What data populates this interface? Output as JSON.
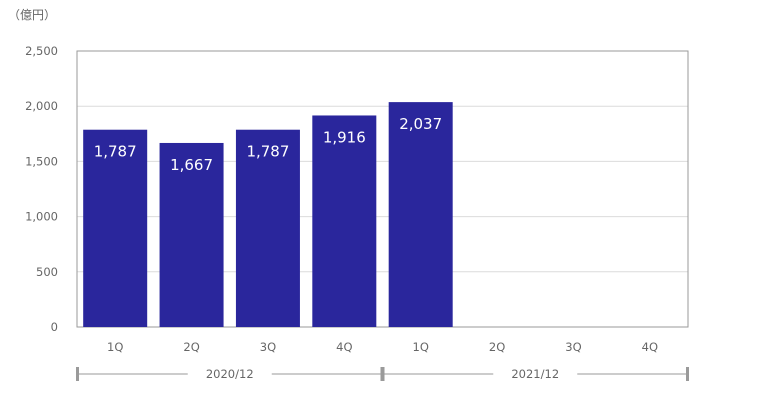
{
  "chart_data": {
    "type": "bar",
    "unit_label": "（億円）",
    "categories": [
      "1Q",
      "2Q",
      "3Q",
      "4Q",
      "1Q",
      "2Q",
      "3Q",
      "4Q"
    ],
    "groups": [
      {
        "label": "2020/12",
        "categories": [
          "1Q",
          "2Q",
          "3Q",
          "4Q"
        ]
      },
      {
        "label": "2021/12",
        "categories": [
          "1Q",
          "2Q",
          "3Q",
          "4Q"
        ]
      }
    ],
    "values": [
      1787,
      1667,
      1787,
      1916,
      2037,
      null,
      null,
      null
    ],
    "data_labels": [
      "1,787",
      "1,667",
      "1,787",
      "1,916",
      "2,037",
      "",
      "",
      ""
    ],
    "ylim": [
      0,
      2500
    ],
    "yticks": [
      0,
      500,
      1000,
      1500,
      2000,
      2500
    ],
    "ytick_labels": [
      "0",
      "500",
      "1,000",
      "1,500",
      "2,000",
      "2,500"
    ],
    "grid": true,
    "bar_color": "#2a269c"
  }
}
